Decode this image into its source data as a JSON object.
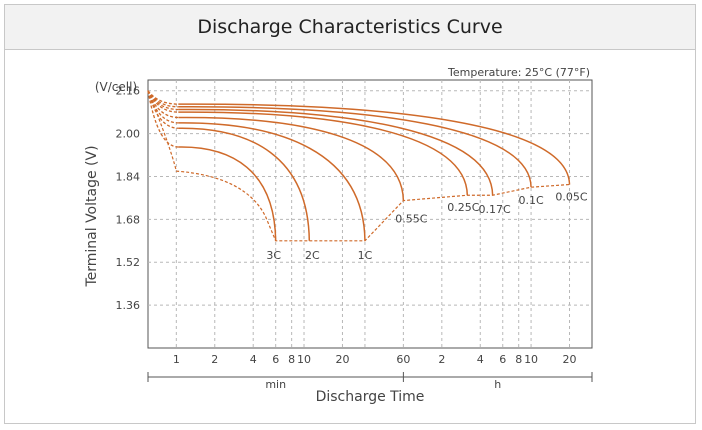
{
  "colors": {
    "curve": "#cf6a2a",
    "grid": "#b8b8b8",
    "axis": "#555555",
    "title_bg": "#f2f2f2"
  },
  "chart_data": {
    "type": "line",
    "title": "Discharge Characteristics Curve",
    "subtitle": "Temperature: 25°C (77°F)",
    "ylabel": "Terminal Voltage (V)",
    "y_unit": "(V/cell)",
    "xlabel": "Discharge Time",
    "ylim": [
      1.2,
      2.2
    ],
    "y_ticks": [
      "2.16",
      "2.00",
      "1.84",
      "1.68",
      "1.52",
      "1.36"
    ],
    "x_scale": "log (minutes)",
    "x_ticks_min": [
      "1",
      "2",
      "4",
      "6",
      "8",
      "10",
      "20",
      "30",
      "60"
    ],
    "x_ticks_h": [
      "2",
      "4",
      "6",
      "8",
      "10",
      "20"
    ],
    "x_tick_labels": [
      "1",
      "2",
      "4",
      "6",
      "8",
      "10",
      "20",
      "60",
      "2",
      "4",
      "6",
      "8",
      "10",
      "20"
    ],
    "x_unit_min": "min",
    "x_unit_h": "h",
    "grid": true,
    "start_voltage": 2.16,
    "series": [
      {
        "name": "3C",
        "plateau_v": 1.95,
        "end_min": 6,
        "cutoff_v": 1.6
      },
      {
        "name": "2C",
        "plateau_v": 2.02,
        "end_min": 11,
        "cutoff_v": 1.6
      },
      {
        "name": "1C",
        "plateau_v": 2.04,
        "end_min": 30,
        "cutoff_v": 1.6
      },
      {
        "name": "0.55C",
        "plateau_v": 2.06,
        "end_min": 60,
        "cutoff_v": 1.75
      },
      {
        "name": "0.25C",
        "plateau_v": 2.08,
        "end_min": 190,
        "cutoff_v": 1.77
      },
      {
        "name": "0.17C",
        "plateau_v": 2.09,
        "end_min": 300,
        "cutoff_v": 1.77
      },
      {
        "name": "0.1C",
        "plateau_v": 2.1,
        "end_min": 600,
        "cutoff_v": 1.8
      },
      {
        "name": "0.05C",
        "plateau_v": 2.11,
        "end_min": 1200,
        "cutoff_v": 1.81
      }
    ]
  }
}
